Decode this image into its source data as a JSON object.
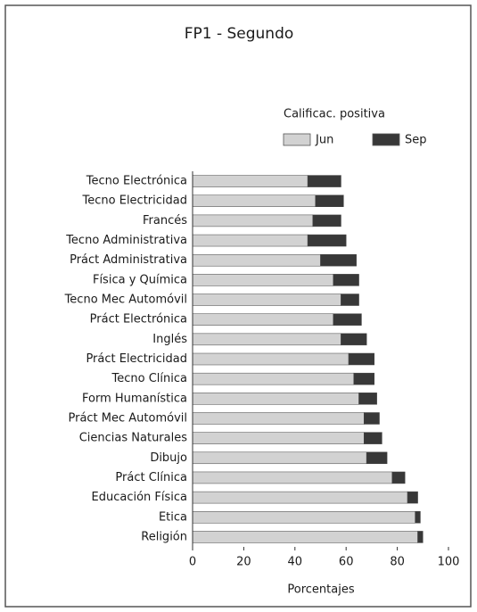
{
  "chart_data": {
    "type": "stacked-barh",
    "title": "FP1 - Segundo",
    "legend_title": "Calificac. positiva",
    "xlabel": "Porcentajes",
    "categories": [
      "Tecno Electrónica",
      "Tecno Electricidad",
      "Francés",
      "Tecno Administrativa",
      "Práct Administrativa",
      "Física y Química",
      "Tecno Mec Automóvil",
      "Práct Electrónica",
      "Inglés",
      "Práct Electricidad",
      "Tecno Clínica",
      "Form Humanística",
      "Práct Mec Automóvil",
      "Ciencias Naturales",
      "Dibujo",
      "Práct Clínica",
      "Educación Física",
      "Etica",
      "Religión"
    ],
    "series": [
      {
        "name": "Jun",
        "color": "#d2d2d2",
        "values": [
          45,
          48,
          47,
          45,
          50,
          55,
          58,
          55,
          58,
          61,
          63,
          65,
          67,
          67,
          68,
          78,
          84,
          87,
          88
        ]
      },
      {
        "name": "Sep",
        "color": "#383838",
        "values": [
          13,
          11,
          11,
          15,
          14,
          10,
          7,
          11,
          10,
          10,
          8,
          7,
          6,
          7,
          8,
          5,
          4,
          2,
          2
        ]
      }
    ],
    "xlim": [
      0,
      100
    ],
    "xticks": [
      0,
      20,
      40,
      60,
      80,
      100
    ]
  }
}
